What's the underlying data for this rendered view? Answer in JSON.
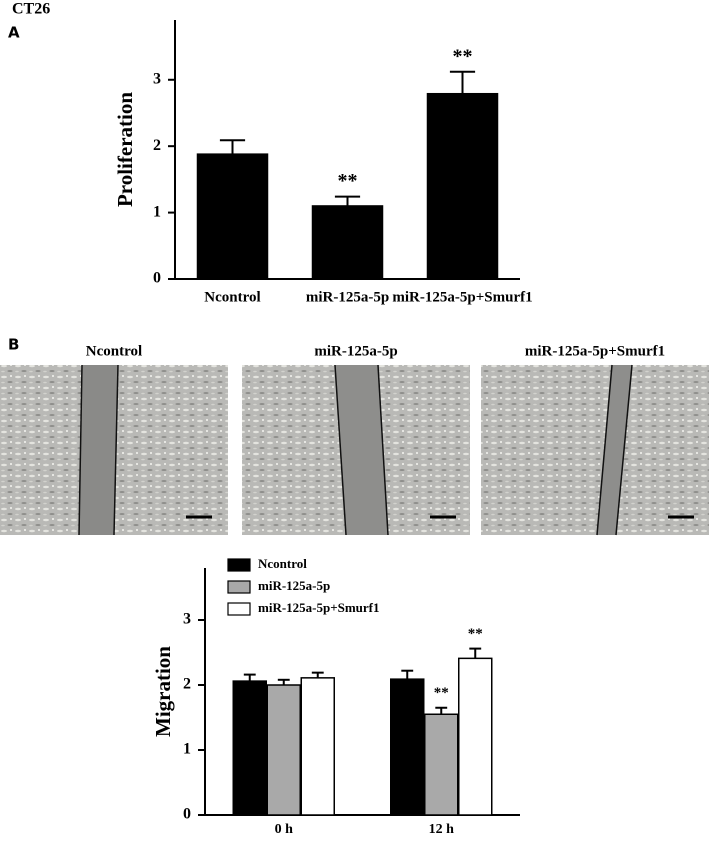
{
  "title": "CT26",
  "panel_labels": [
    "A",
    "B"
  ],
  "images": [
    {
      "label": "Ncontrol"
    },
    {
      "label": "miR-125a-5p"
    },
    {
      "label": "miR-125a-5p+Smurf1"
    }
  ],
  "chart_data": [
    {
      "type": "bar",
      "y_label": "Proliferation",
      "categories": [
        "Ncontrol",
        "miR-125a-5p",
        "miR-125a-5p+Smurf1"
      ],
      "values": [
        1.88,
        1.1,
        2.79
      ],
      "errors": [
        0.21,
        0.14,
        0.33
      ],
      "significance": [
        null,
        "**",
        "**"
      ],
      "color": "#000000",
      "ylim": [
        0,
        3.9
      ],
      "yticks": [
        0,
        1,
        2,
        3
      ]
    },
    {
      "type": "bar",
      "y_label": "Migration",
      "categories": [
        "0 h",
        "12 h"
      ],
      "series": [
        {
          "name": "Ncontrol",
          "color": "#000000",
          "values": [
            2.06,
            2.09
          ],
          "errors": [
            0.1,
            0.13
          ],
          "significance": [
            null,
            null
          ]
        },
        {
          "name": "miR-125a-5p",
          "color": "#a9a9a9",
          "values": [
            2.0,
            1.55
          ],
          "errors": [
            0.08,
            0.1
          ],
          "significance": [
            null,
            "**"
          ]
        },
        {
          "name": "miR-125a-5p+Smurf1",
          "color": "#ffffff",
          "values": [
            2.11,
            2.41
          ],
          "errors": [
            0.08,
            0.15
          ],
          "significance": [
            null,
            "**"
          ]
        }
      ],
      "legend": "upper left",
      "ylim": [
        0,
        3.8
      ],
      "yticks": [
        0,
        1,
        2,
        3
      ]
    }
  ]
}
